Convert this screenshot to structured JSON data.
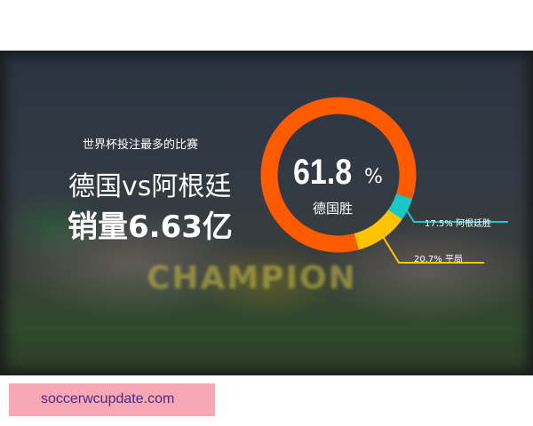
{
  "headline": {
    "subtitle": "世界杯投注最多的比赛",
    "match": "德国vs阿根廷",
    "sales": "销量6.63亿"
  },
  "chart_data": {
    "type": "pie",
    "donut": true,
    "center_value": "61.8",
    "center_unit": "%",
    "center_label": "德国胜",
    "slices": [
      {
        "label": "德国胜",
        "value": 61.8,
        "color": "#ff5a00"
      },
      {
        "label": "阿根廷胜",
        "value": 17.5,
        "color": "#19c9c6",
        "annotation": "17.5%  阿根廷胜"
      },
      {
        "label": "平局",
        "value": 20.7,
        "color": "#ffc400",
        "annotation": "20.7%  平局"
      }
    ]
  },
  "background_text": "CHAMPION",
  "watermark": "soccerwcupdate.com"
}
